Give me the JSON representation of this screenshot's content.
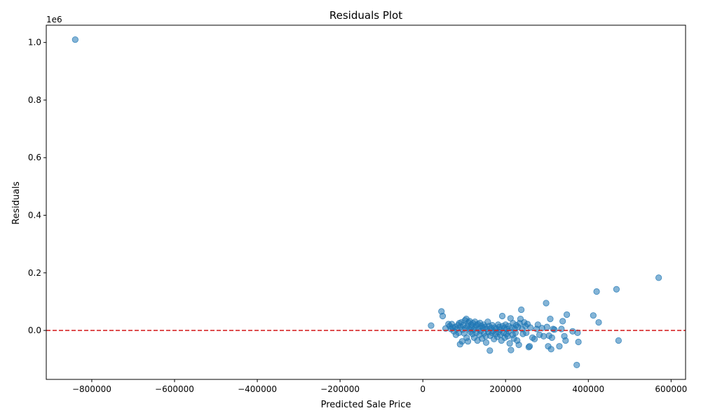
{
  "chart_data": {
    "type": "scatter",
    "title": "Residuals Plot",
    "xlabel": "Predicted Sale Price",
    "ylabel": "Residuals",
    "y_offset_text": "1e6",
    "xlim": [
      -910000,
      635000
    ],
    "ylim": [
      -170000,
      1060000
    ],
    "x_ticks": [
      -800000,
      -600000,
      -400000,
      -200000,
      0,
      200000,
      400000,
      600000
    ],
    "x_tick_labels": [
      "−800000",
      "−600000",
      "−400000",
      "−200000",
      "0",
      "200000",
      "400000",
      "600000"
    ],
    "y_ticks": [
      0,
      200000,
      400000,
      600000,
      800000,
      1000000
    ],
    "y_tick_labels": [
      "0.0",
      "0.2",
      "0.4",
      "0.6",
      "0.8",
      "1.0"
    ],
    "grid": false,
    "point_color": "#1f77b4",
    "point_alpha": 0.55,
    "reference_line": {
      "y": 0,
      "color": "#d62728",
      "style": "dashed"
    },
    "points": [
      {
        "x": -840000,
        "y": 1010000
      },
      {
        "x": 20000,
        "y": 17000
      },
      {
        "x": 45000,
        "y": 66000
      },
      {
        "x": 48000,
        "y": 50000
      },
      {
        "x": 55000,
        "y": 7000
      },
      {
        "x": 62000,
        "y": 22000
      },
      {
        "x": 65000,
        "y": 15000
      },
      {
        "x": 68000,
        "y": 5000
      },
      {
        "x": 70000,
        "y": 22000
      },
      {
        "x": 72000,
        "y": 10000
      },
      {
        "x": 75000,
        "y": -3000
      },
      {
        "x": 78000,
        "y": 12000
      },
      {
        "x": 80000,
        "y": -15000
      },
      {
        "x": 82000,
        "y": 5000
      },
      {
        "x": 85000,
        "y": 18000
      },
      {
        "x": 87000,
        "y": -8000
      },
      {
        "x": 88000,
        "y": 25000
      },
      {
        "x": 90000,
        "y": -48000
      },
      {
        "x": 91000,
        "y": 12000
      },
      {
        "x": 93000,
        "y": 28000
      },
      {
        "x": 95000,
        "y": -38000
      },
      {
        "x": 96000,
        "y": 3000
      },
      {
        "x": 98000,
        "y": 18000
      },
      {
        "x": 100000,
        "y": -10000
      },
      {
        "x": 102000,
        "y": 35000
      },
      {
        "x": 103000,
        "y": 8000
      },
      {
        "x": 105000,
        "y": 40000
      },
      {
        "x": 106000,
        "y": -25000
      },
      {
        "x": 108000,
        "y": 15000
      },
      {
        "x": 109000,
        "y": -38000
      },
      {
        "x": 110000,
        "y": 28000
      },
      {
        "x": 112000,
        "y": 5000
      },
      {
        "x": 113000,
        "y": 32000
      },
      {
        "x": 115000,
        "y": -5000
      },
      {
        "x": 117000,
        "y": 20000
      },
      {
        "x": 118000,
        "y": 12000
      },
      {
        "x": 120000,
        "y": -12000
      },
      {
        "x": 121000,
        "y": 25000
      },
      {
        "x": 123000,
        "y": 3000
      },
      {
        "x": 124000,
        "y": -25000
      },
      {
        "x": 126000,
        "y": 30000
      },
      {
        "x": 127000,
        "y": 10000
      },
      {
        "x": 129000,
        "y": -8000
      },
      {
        "x": 130000,
        "y": 18000
      },
      {
        "x": 132000,
        "y": -35000
      },
      {
        "x": 133000,
        "y": 22000
      },
      {
        "x": 135000,
        "y": 5000
      },
      {
        "x": 137000,
        "y": -15000
      },
      {
        "x": 138000,
        "y": 26000
      },
      {
        "x": 140000,
        "y": -2000
      },
      {
        "x": 142000,
        "y": 15000
      },
      {
        "x": 143000,
        "y": -28000
      },
      {
        "x": 145000,
        "y": 8000
      },
      {
        "x": 147000,
        "y": 20000
      },
      {
        "x": 148000,
        "y": -10000
      },
      {
        "x": 150000,
        "y": 12000
      },
      {
        "x": 152000,
        "y": -20000
      },
      {
        "x": 153000,
        "y": -42000
      },
      {
        "x": 155000,
        "y": 5000
      },
      {
        "x": 157000,
        "y": 30000
      },
      {
        "x": 158000,
        "y": -5000
      },
      {
        "x": 160000,
        "y": 15000
      },
      {
        "x": 162000,
        "y": -70000
      },
      {
        "x": 163000,
        "y": -18000
      },
      {
        "x": 165000,
        "y": 8000
      },
      {
        "x": 167000,
        "y": -8000
      },
      {
        "x": 168000,
        "y": 18000
      },
      {
        "x": 170000,
        "y": -2000
      },
      {
        "x": 172000,
        "y": -30000
      },
      {
        "x": 174000,
        "y": 10000
      },
      {
        "x": 176000,
        "y": -12000
      },
      {
        "x": 178000,
        "y": 5000
      },
      {
        "x": 180000,
        "y": -22000
      },
      {
        "x": 182000,
        "y": 20000
      },
      {
        "x": 183000,
        "y": -5000
      },
      {
        "x": 185000,
        "y": 12000
      },
      {
        "x": 187000,
        "y": -15000
      },
      {
        "x": 188000,
        "y": 3000
      },
      {
        "x": 190000,
        "y": -35000
      },
      {
        "x": 192000,
        "y": 50000
      },
      {
        "x": 193000,
        "y": 15000
      },
      {
        "x": 195000,
        "y": -8000
      },
      {
        "x": 197000,
        "y": 8000
      },
      {
        "x": 198000,
        "y": -25000
      },
      {
        "x": 200000,
        "y": 20000
      },
      {
        "x": 202000,
        "y": -12000
      },
      {
        "x": 203000,
        "y": 5000
      },
      {
        "x": 205000,
        "y": -20000
      },
      {
        "x": 207000,
        "y": 15000
      },
      {
        "x": 208000,
        "y": -3000
      },
      {
        "x": 210000,
        "y": -45000
      },
      {
        "x": 212000,
        "y": 42000
      },
      {
        "x": 213000,
        "y": -68000
      },
      {
        "x": 215000,
        "y": 10000
      },
      {
        "x": 217000,
        "y": -15000
      },
      {
        "x": 218000,
        "y": 25000
      },
      {
        "x": 220000,
        "y": -28000
      },
      {
        "x": 222000,
        "y": 5000
      },
      {
        "x": 224000,
        "y": -8000
      },
      {
        "x": 226000,
        "y": 18000
      },
      {
        "x": 228000,
        "y": -35000
      },
      {
        "x": 230000,
        "y": 12000
      },
      {
        "x": 232000,
        "y": -50000
      },
      {
        "x": 234000,
        "y": 25000
      },
      {
        "x": 236000,
        "y": 40000
      },
      {
        "x": 238000,
        "y": 72000
      },
      {
        "x": 240000,
        "y": 5000
      },
      {
        "x": 242000,
        "y": -12000
      },
      {
        "x": 245000,
        "y": 28000
      },
      {
        "x": 248000,
        "y": 15000
      },
      {
        "x": 250000,
        "y": -8000
      },
      {
        "x": 253000,
        "y": 22000
      },
      {
        "x": 256000,
        "y": -58000
      },
      {
        "x": 258000,
        "y": -55000
      },
      {
        "x": 260000,
        "y": 10000
      },
      {
        "x": 265000,
        "y": -25000
      },
      {
        "x": 270000,
        "y": -30000
      },
      {
        "x": 275000,
        "y": 5000
      },
      {
        "x": 278000,
        "y": 20000
      },
      {
        "x": 282000,
        "y": -15000
      },
      {
        "x": 288000,
        "y": 8000
      },
      {
        "x": 292000,
        "y": -20000
      },
      {
        "x": 298000,
        "y": 95000
      },
      {
        "x": 300000,
        "y": 12000
      },
      {
        "x": 303000,
        "y": -55000
      },
      {
        "x": 305000,
        "y": -18000
      },
      {
        "x": 308000,
        "y": 40000
      },
      {
        "x": 310000,
        "y": -65000
      },
      {
        "x": 312000,
        "y": -25000
      },
      {
        "x": 315000,
        "y": 5000
      },
      {
        "x": 318000,
        "y": 3000
      },
      {
        "x": 330000,
        "y": -55000
      },
      {
        "x": 335000,
        "y": 5000
      },
      {
        "x": 338000,
        "y": 32000
      },
      {
        "x": 342000,
        "y": -20000
      },
      {
        "x": 345000,
        "y": -35000
      },
      {
        "x": 348000,
        "y": 55000
      },
      {
        "x": 362000,
        "y": -3000
      },
      {
        "x": 372000,
        "y": -120000
      },
      {
        "x": 374000,
        "y": -8000
      },
      {
        "x": 376000,
        "y": -40000
      },
      {
        "x": 412000,
        "y": 52000
      },
      {
        "x": 420000,
        "y": 135000
      },
      {
        "x": 425000,
        "y": 28000
      },
      {
        "x": 468000,
        "y": 143000
      },
      {
        "x": 473000,
        "y": -35000
      },
      {
        "x": 570000,
        "y": 183000
      }
    ]
  }
}
